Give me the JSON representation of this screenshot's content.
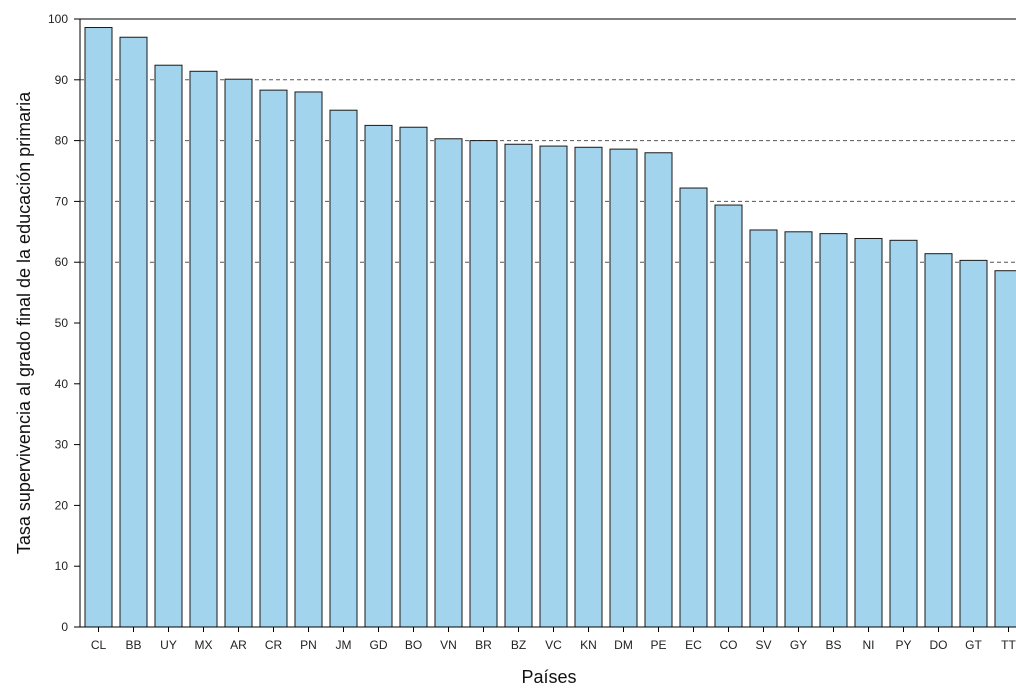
{
  "chart_data": {
    "type": "bar",
    "title": "",
    "xlabel": "Países",
    "ylabel": "Tasa supervivencia al grado final de la educación primaria",
    "ylim": [
      0,
      100
    ],
    "yticks": [
      0,
      10,
      20,
      30,
      40,
      50,
      60,
      70,
      80,
      90,
      100
    ],
    "gridlines": [
      60,
      70,
      80,
      90
    ],
    "grid_style": "dashed",
    "categories": [
      "CL",
      "BB",
      "UY",
      "MX",
      "AR",
      "CR",
      "PN",
      "JM",
      "GD",
      "BO",
      "VN",
      "BR",
      "BZ",
      "VC",
      "KN",
      "DM",
      "PE",
      "EC",
      "CO",
      "SV",
      "GY",
      "BS",
      "NI",
      "PY",
      "DO",
      "GT",
      "TT"
    ],
    "values": [
      98.6,
      97.0,
      92.4,
      91.4,
      90.1,
      88.3,
      88.0,
      85.0,
      82.5,
      82.2,
      80.3,
      80.0,
      79.4,
      79.1,
      78.9,
      78.6,
      78.0,
      72.2,
      69.4,
      65.3,
      65.0,
      64.7,
      63.9,
      63.6,
      61.4,
      60.3,
      58.6
    ],
    "bar_color": "#a3d4ed"
  }
}
